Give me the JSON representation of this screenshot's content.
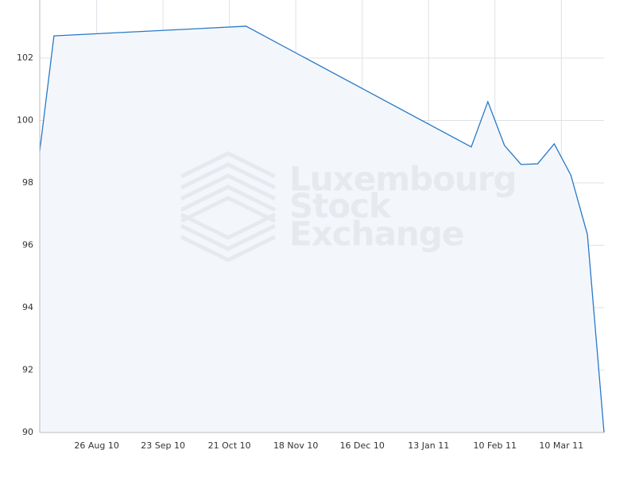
{
  "chart_data": {
    "type": "area",
    "watermark": [
      "Luxembourg",
      "Stock",
      "Exchange"
    ],
    "x": [
      "2010-08-02",
      "2010-08-08",
      "2010-10-28",
      "2011-01-31",
      "2011-02-07",
      "2011-02-14",
      "2011-02-21",
      "2011-02-28",
      "2011-03-07",
      "2011-03-14",
      "2011-03-21",
      "2011-03-28"
    ],
    "series": [
      {
        "color": "#2a78c6",
        "values": [
          99.02,
          102.71,
          103.02,
          99.15,
          100.6,
          99.2,
          98.59,
          98.61,
          99.25,
          98.25,
          96.34,
          90.0
        ]
      }
    ],
    "fill": "#f3f7fc",
    "xlim": [
      "2010-08-02",
      "2011-03-28"
    ],
    "xticks": [
      {
        "value": "2010-08-26",
        "label": "26 Aug 10"
      },
      {
        "value": "2010-09-23",
        "label": "23 Sep 10"
      },
      {
        "value": "2010-10-21",
        "label": "21 Oct 10"
      },
      {
        "value": "2010-11-18",
        "label": "18 Nov 10"
      },
      {
        "value": "2010-12-16",
        "label": "16 Dec 10"
      },
      {
        "value": "2011-01-13",
        "label": "13 Jan 11"
      },
      {
        "value": "2011-02-10",
        "label": "10 Feb 11"
      },
      {
        "value": "2011-03-10",
        "label": "10 Mar 11"
      }
    ],
    "ylim": [
      90,
      103.86
    ],
    "yticks": [
      90,
      92,
      94,
      96,
      98,
      100,
      102
    ],
    "grid": true
  }
}
